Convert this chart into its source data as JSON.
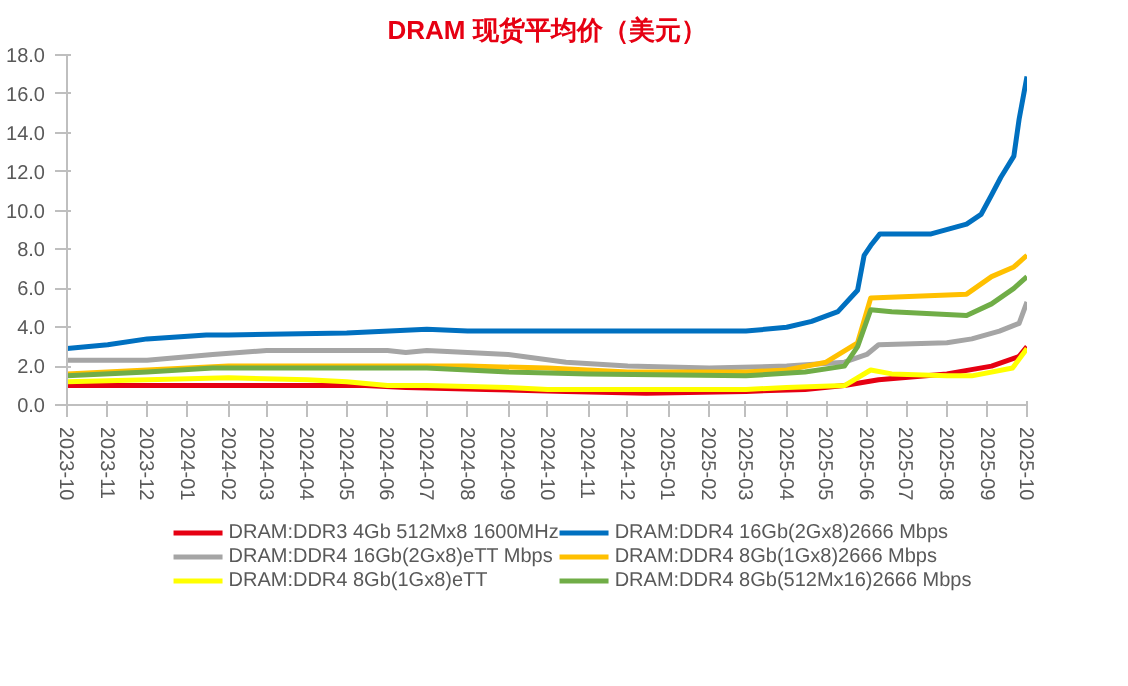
{
  "chart_data": {
    "type": "line",
    "title": "DRAM 现货平均价（美元）",
    "xlim": [
      "2023-10-01",
      "2025-10-01"
    ],
    "xticks": [
      "2023-10",
      "2023-11",
      "2023-12",
      "2024-01",
      "2024-02",
      "2024-03",
      "2024-04",
      "2024-05",
      "2024-06",
      "2024-07",
      "2024-08",
      "2024-09",
      "2024-10",
      "2024-11",
      "2024-12",
      "2025-01",
      "2025-02",
      "2025-03",
      "2025-04",
      "2025-05",
      "2025-06",
      "2025-07",
      "2025-08",
      "2025-09",
      "2025-10"
    ],
    "ylim": [
      0,
      18
    ],
    "yticks": [
      {
        "value": 0,
        "label": "0.0"
      },
      {
        "value": 2,
        "label": "2.0"
      },
      {
        "value": 4,
        "label": "4.0"
      },
      {
        "value": 6,
        "label": "6.0"
      },
      {
        "value": 8,
        "label": "8.0"
      },
      {
        "value": 10,
        "label": "10.0"
      },
      {
        "value": 12,
        "label": "12.0"
      },
      {
        "value": 14,
        "label": "14.0"
      },
      {
        "value": 16,
        "label": "16.0"
      },
      {
        "value": 18,
        "label": "18.0"
      }
    ],
    "grid": false,
    "legend": "bottom",
    "marker": "none",
    "line_style": "solid",
    "series": [
      {
        "name": "DRAM:DDR3 4Gb 512Mx8 1600MHz",
        "color": "#e60012",
        "x": [
          "2023-10-01",
          "2024-05-15",
          "2024-06-15",
          "2024-08-15",
          "2024-10-15",
          "2024-12-15",
          "2025-03-01",
          "2025-04-15",
          "2025-05-15",
          "2025-06-10",
          "2025-08-01",
          "2025-09-04",
          "2025-09-25",
          "2025-10-01"
        ],
        "values": [
          1.0,
          1.0,
          0.9,
          0.8,
          0.7,
          0.6,
          0.7,
          0.8,
          1.0,
          1.3,
          1.6,
          2.0,
          2.5,
          3.0
        ]
      },
      {
        "name": "DRAM:DDR4 16Gb(2Gx8)2666 Mbps",
        "color": "#0070c0",
        "x": [
          "2023-10-01",
          "2023-11-01",
          "2023-12-01",
          "2024-01-15",
          "2024-02-01",
          "2024-05-01",
          "2024-07-01",
          "2024-08-01",
          "2025-03-01",
          "2025-04-01",
          "2025-04-20",
          "2025-05-10",
          "2025-05-25",
          "2025-05-30",
          "2025-06-04",
          "2025-06-11",
          "2025-07-20",
          "2025-08-16",
          "2025-08-27",
          "2025-09-04",
          "2025-09-11",
          "2025-09-21",
          "2025-09-25",
          "2025-10-01"
        ],
        "values": [
          2.9,
          3.1,
          3.4,
          3.6,
          3.6,
          3.7,
          3.9,
          3.8,
          3.8,
          4.0,
          4.3,
          4.8,
          5.9,
          7.7,
          8.2,
          8.8,
          8.8,
          9.3,
          9.8,
          10.8,
          11.7,
          12.8,
          14.7,
          16.9
        ]
      },
      {
        "name": "DRAM:DDR4 16Gb(2Gx8)eTT Mbps",
        "color": "#a5a5a5",
        "x": [
          "2023-10-01",
          "2023-12-01",
          "2024-01-20",
          "2024-03-01",
          "2024-06-01",
          "2024-06-15",
          "2024-07-01",
          "2024-08-01",
          "2024-09-01",
          "2024-10-15",
          "2024-12-01",
          "2025-02-01",
          "2025-04-01",
          "2025-05-15",
          "2025-06-01",
          "2025-06-10",
          "2025-08-01",
          "2025-08-20",
          "2025-09-10",
          "2025-09-25",
          "2025-10-01"
        ],
        "values": [
          2.3,
          2.3,
          2.6,
          2.8,
          2.8,
          2.7,
          2.8,
          2.7,
          2.6,
          2.2,
          2.0,
          1.9,
          2.0,
          2.2,
          2.6,
          3.1,
          3.2,
          3.4,
          3.8,
          4.2,
          5.3
        ]
      },
      {
        "name": "DRAM:DDR4 8Gb(1Gx8)2666 Mbps",
        "color": "#ffc000",
        "x": [
          "2023-10-01",
          "2023-12-01",
          "2024-02-01",
          "2024-08-01",
          "2024-10-01",
          "2024-12-01",
          "2025-03-01",
          "2025-04-01",
          "2025-05-01",
          "2025-05-25",
          "2025-06-04",
          "2025-08-16",
          "2025-09-04",
          "2025-09-21",
          "2025-10-01"
        ],
        "values": [
          1.6,
          1.8,
          2.0,
          2.0,
          1.9,
          1.7,
          1.7,
          1.8,
          2.2,
          3.2,
          5.5,
          5.7,
          6.6,
          7.1,
          7.7
        ]
      },
      {
        "name": "DRAM:DDR4 8Gb(1Gx8)eTT",
        "color": "#ffff00",
        "x": [
          "2023-10-01",
          "2024-02-01",
          "2024-04-01",
          "2024-05-01",
          "2024-06-01",
          "2024-07-01",
          "2024-09-01",
          "2024-10-01",
          "2025-03-01",
          "2025-04-01",
          "2025-05-15",
          "2025-06-04",
          "2025-06-20",
          "2025-08-01",
          "2025-08-20",
          "2025-09-20",
          "2025-10-01"
        ],
        "values": [
          1.2,
          1.4,
          1.3,
          1.2,
          1.0,
          1.0,
          0.9,
          0.8,
          0.8,
          0.9,
          1.0,
          1.8,
          1.6,
          1.5,
          1.5,
          1.9,
          2.9
        ]
      },
      {
        "name": "DRAM:DDR4 8Gb(512Mx16)2666 Mbps",
        "color": "#70ad47",
        "x": [
          "2023-10-01",
          "2023-12-01",
          "2024-01-20",
          "2024-07-01",
          "2024-09-01",
          "2024-11-01",
          "2025-03-01",
          "2025-04-15",
          "2025-05-15",
          "2025-05-25",
          "2025-06-04",
          "2025-06-20",
          "2025-08-16",
          "2025-09-04",
          "2025-09-21",
          "2025-10-01"
        ],
        "values": [
          1.5,
          1.7,
          1.9,
          1.9,
          1.7,
          1.6,
          1.5,
          1.7,
          2.0,
          3.0,
          4.9,
          4.8,
          4.6,
          5.2,
          6.0,
          6.6
        ]
      }
    ]
  }
}
